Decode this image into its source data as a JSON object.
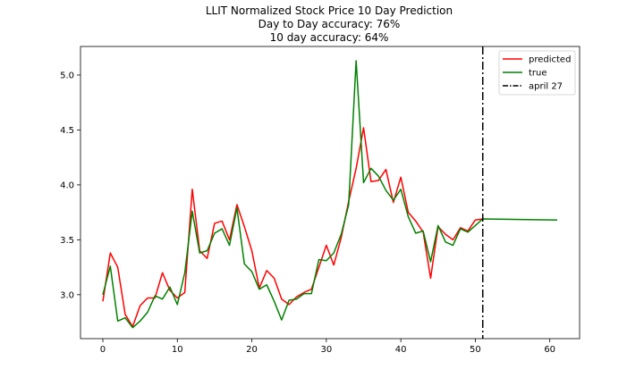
{
  "chart_data": {
    "type": "line",
    "title_lines": [
      "LLIT Normalized Stock Price 10 Day Prediction",
      "Day to Day accuracy: 76%",
      "10 day accuracy: 64%"
    ],
    "xlabel": "",
    "ylabel": "",
    "xlim": [
      -3.0,
      64.0
    ],
    "ylim": [
      2.6,
      5.26
    ],
    "x_ticks": [
      0,
      10,
      20,
      30,
      40,
      50,
      60
    ],
    "y_ticks": [
      3.0,
      3.5,
      4.0,
      4.5,
      5.0
    ],
    "x_tick_labels": [
      "0",
      "10",
      "20",
      "30",
      "40",
      "50",
      "60"
    ],
    "y_tick_labels": [
      "3.0",
      "3.5",
      "4.0",
      "4.5",
      "5.0"
    ],
    "grid": false,
    "legend_position": "top-right",
    "series": [
      {
        "name": "predicted",
        "color": "#ff0000",
        "x": [
          0,
          1,
          2,
          3,
          4,
          5,
          6,
          7,
          8,
          9,
          10,
          11,
          12,
          13,
          14,
          15,
          16,
          17,
          18,
          19,
          20,
          21,
          22,
          23,
          24,
          25,
          26,
          27,
          28,
          29,
          30,
          31,
          32,
          33,
          34,
          35,
          36,
          37,
          38,
          39,
          40,
          41,
          42,
          43,
          44,
          45,
          46,
          47,
          48,
          49,
          50,
          51
        ],
        "values": [
          2.94,
          3.38,
          3.25,
          2.82,
          2.71,
          2.9,
          2.97,
          2.97,
          3.2,
          3.04,
          2.97,
          3.02,
          3.96,
          3.4,
          3.33,
          3.65,
          3.67,
          3.5,
          3.82,
          3.62,
          3.4,
          3.06,
          3.22,
          3.15,
          2.96,
          2.91,
          2.98,
          3.02,
          3.05,
          3.25,
          3.45,
          3.27,
          3.52,
          3.85,
          4.15,
          4.52,
          4.03,
          4.04,
          4.14,
          3.84,
          4.07,
          3.75,
          3.67,
          3.57,
          3.15,
          3.62,
          3.55,
          3.5,
          3.61,
          3.58,
          3.68,
          3.69
        ]
      },
      {
        "name": "true",
        "color": "#008000",
        "x": [
          0,
          1,
          2,
          3,
          4,
          5,
          6,
          7,
          8,
          9,
          10,
          11,
          12,
          13,
          14,
          15,
          16,
          17,
          18,
          19,
          20,
          21,
          22,
          23,
          24,
          25,
          26,
          27,
          28,
          29,
          30,
          31,
          32,
          33,
          34,
          35,
          36,
          37,
          38,
          39,
          40,
          41,
          42,
          43,
          44,
          45,
          46,
          47,
          48,
          49,
          50,
          51,
          61
        ],
        "values": [
          3.0,
          3.26,
          2.76,
          2.79,
          2.7,
          2.76,
          2.84,
          2.99,
          2.96,
          3.07,
          2.91,
          3.2,
          3.76,
          3.38,
          3.4,
          3.56,
          3.6,
          3.45,
          3.79,
          3.28,
          3.21,
          3.05,
          3.09,
          2.94,
          2.77,
          2.95,
          2.96,
          3.01,
          3.01,
          3.32,
          3.31,
          3.38,
          3.55,
          3.82,
          5.13,
          4.02,
          4.15,
          4.08,
          3.95,
          3.86,
          3.96,
          3.71,
          3.56,
          3.58,
          3.3,
          3.63,
          3.48,
          3.45,
          3.6,
          3.57,
          3.63,
          3.69,
          3.68
        ]
      }
    ],
    "vline": {
      "name": "april 27",
      "x": 51,
      "color": "#000000"
    }
  }
}
